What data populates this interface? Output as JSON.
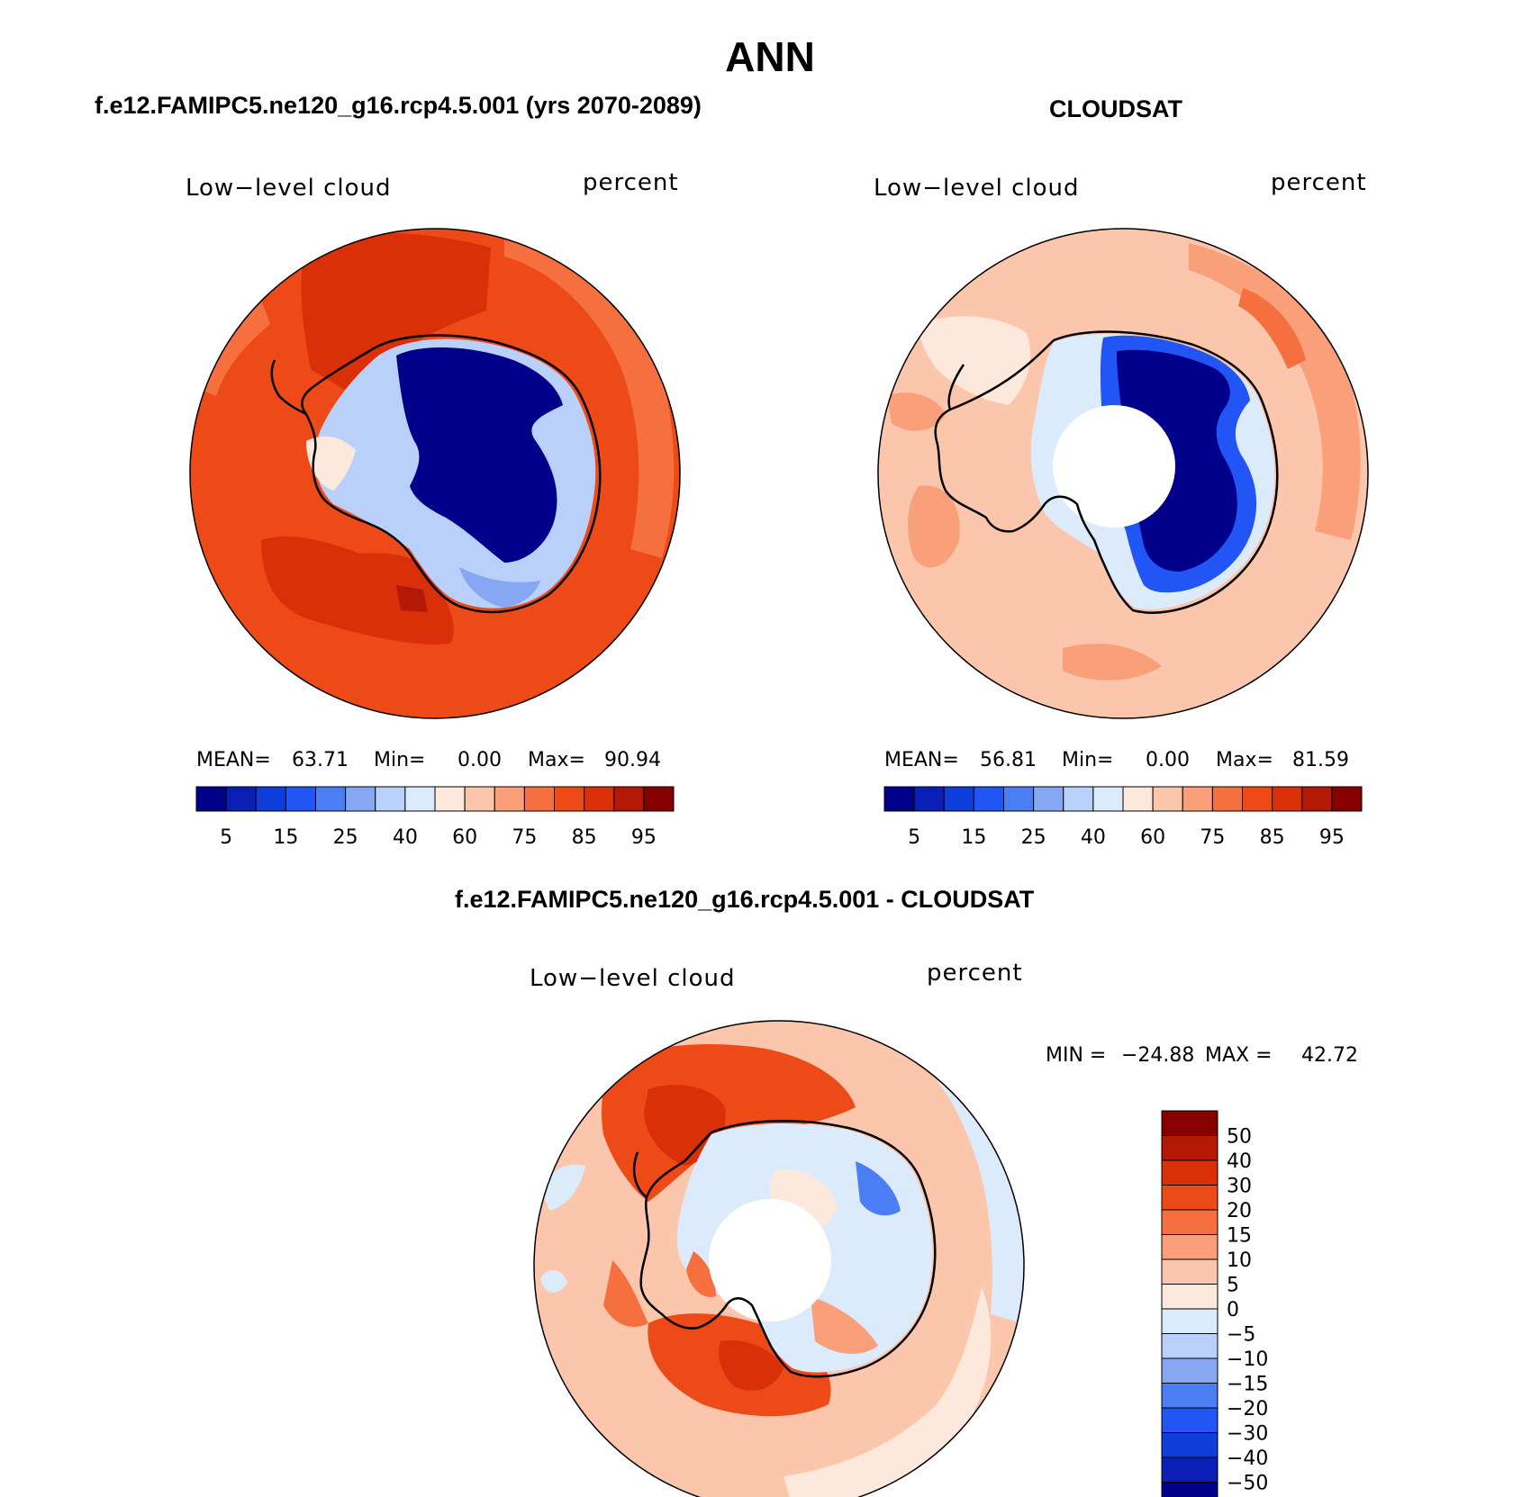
{
  "title": "ANN",
  "panels": [
    {
      "id": "model",
      "header": "f.e12.FAMIPC5.ne120_g16.rcp4.5.001 (yrs 2070-2089)",
      "left_label": "Low−level cloud",
      "right_label": "percent",
      "stats": {
        "mean_label": "MEAN=",
        "mean": "63.71",
        "min_label": "Min=",
        "min": "0.00",
        "max_label": "Max=",
        "max": "90.94"
      }
    },
    {
      "id": "obs",
      "header": "CLOUDSAT",
      "left_label": "Low−level cloud",
      "right_label": "percent",
      "stats": {
        "mean_label": "MEAN=",
        "mean": "56.81",
        "min_label": "Min=",
        "min": "0.00",
        "max_label": "Max=",
        "max": "81.59"
      }
    },
    {
      "id": "diff",
      "header": "f.e12.FAMIPC5.ne120_g16.rcp4.5.001 - CLOUDSAT",
      "left_label": "Low−level cloud",
      "right_label": "percent",
      "stats": {
        "min_label": "MIN =",
        "min": "−24.88",
        "max_label": "MAX =",
        "max": "42.72"
      }
    }
  ],
  "colorbar_abs": {
    "colors": [
      "#00008b",
      "#0a1fb4",
      "#0f3ddc",
      "#2155f5",
      "#4b7df5",
      "#86a8f2",
      "#b9d0fb",
      "#dcebfc",
      "#fde9dc",
      "#fcc6ad",
      "#f9a07a",
      "#f56f3f",
      "#ee4a17",
      "#d93009",
      "#b41806",
      "#860000"
    ],
    "tick_labels": [
      "5",
      "15",
      "25",
      "40",
      "60",
      "75",
      "85",
      "95"
    ]
  },
  "colorbar_diff": {
    "colors": [
      "#860000",
      "#b41806",
      "#d93009",
      "#ee4a17",
      "#f56f3f",
      "#f9a07a",
      "#fcc6ad",
      "#fde9dc",
      "#dcebfc",
      "#b9d0fb",
      "#86a8f2",
      "#4b7df5",
      "#2155f5",
      "#0f3ddc",
      "#0a1fb4",
      "#00008b"
    ],
    "tick_labels": [
      "50",
      "40",
      "30",
      "20",
      "15",
      "10",
      "5",
      "0",
      "−5",
      "−10",
      "−15",
      "−20",
      "−30",
      "−40",
      "−50"
    ]
  }
}
